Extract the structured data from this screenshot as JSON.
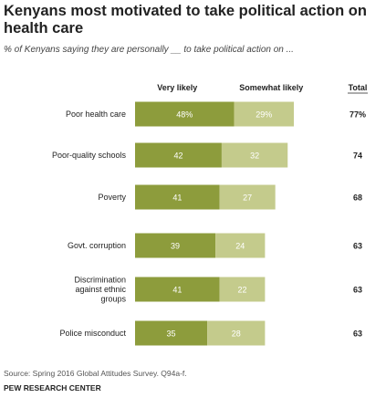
{
  "chart_data": {
    "type": "bar",
    "stacked": true,
    "orientation": "horizontal",
    "title": "Kenyans most motivated to take political action on health care",
    "subtitle": "% of Kenyans saying they are personally __ to take political action on ...",
    "categories": [
      [
        "Poor health care"
      ],
      [
        "Poor-quality schools"
      ],
      [
        "Poverty"
      ],
      [
        "Govt. corruption"
      ],
      [
        "Discrimination",
        "against ethnic",
        "groups"
      ],
      [
        "Police misconduct"
      ]
    ],
    "series": [
      {
        "name": "Very likely",
        "values": [
          48,
          42,
          41,
          39,
          41,
          35
        ],
        "labels": [
          "48%",
          "42",
          "41",
          "39",
          "41",
          "35"
        ],
        "color": "#8d9c3c"
      },
      {
        "name": "Somewhat likely",
        "values": [
          29,
          32,
          27,
          24,
          22,
          28
        ],
        "labels": [
          "29%",
          "32",
          "27",
          "24",
          "22",
          "28"
        ],
        "color": "#c4cb8c"
      }
    ],
    "total_header": "Total",
    "totals": [
      "77%",
      "74",
      "68",
      "63",
      "63",
      "63"
    ],
    "xlim": [
      0,
      100
    ],
    "grid": false,
    "legend": "column headers above bars"
  },
  "footer": {
    "source": "Source: Spring 2016 Global Attitudes Survey. Q94a-f.",
    "org": "PEW RESEARCH CENTER"
  }
}
